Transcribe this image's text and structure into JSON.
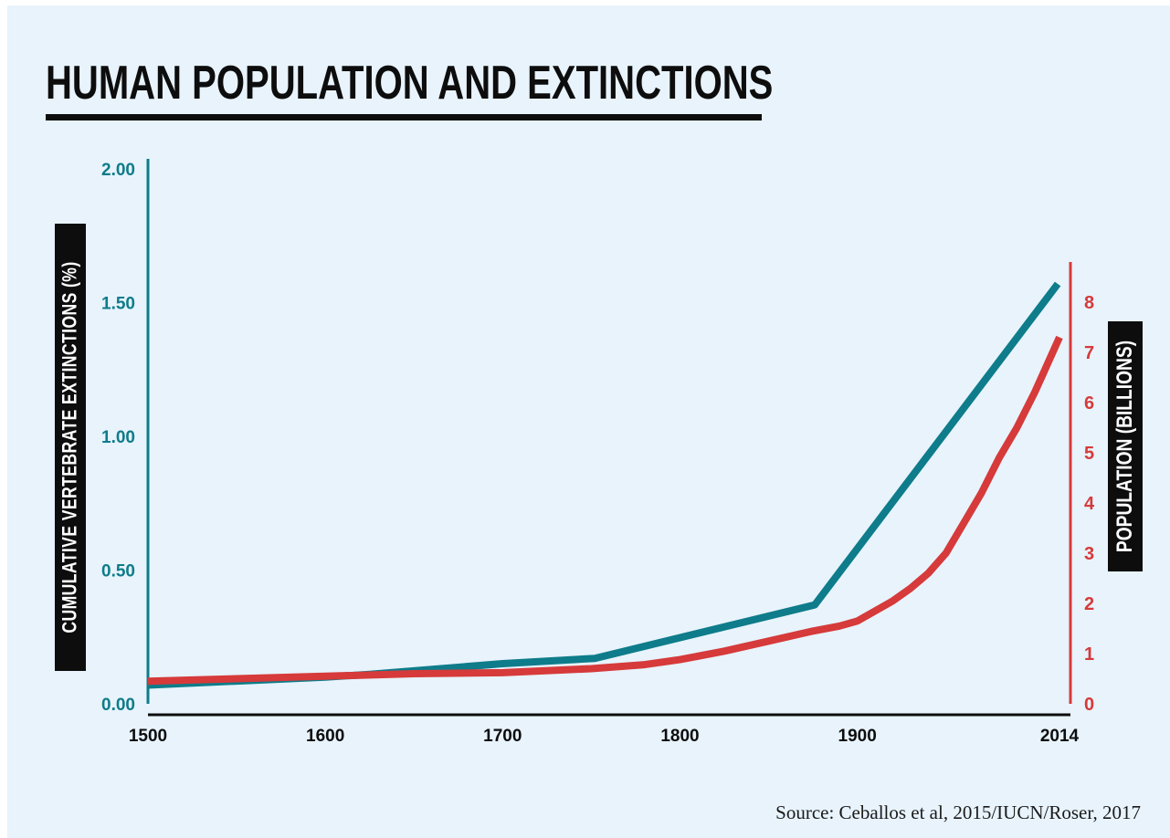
{
  "chart_data": {
    "type": "line",
    "title": "HUMAN POPULATION AND EXTINCTIONS",
    "ylabel": "CUMULATIVE VERTEBRATE EXTINCTIONS (%)",
    "y2label": "POPULATION (BILLIONS)",
    "source": "Source: Ceballos et al, 2015/IUCN/Roser, 2017",
    "x_ticks": [
      "1500",
      "1600",
      "1700",
      "1800",
      "1900",
      "2014"
    ],
    "x_tick_values": [
      1500,
      1600,
      1700,
      1800,
      1900,
      2014
    ],
    "xlim": [
      1500,
      2014
    ],
    "y_ticks": [
      "0.00",
      "0.50",
      "1.00",
      "1.50",
      "2.00"
    ],
    "y_tick_values": [
      0,
      0.5,
      1,
      1.5,
      2
    ],
    "ylim": [
      0,
      2
    ],
    "y2_ticks": [
      "0",
      "1",
      "2",
      "3",
      "4",
      "5",
      "6",
      "7",
      "8"
    ],
    "y2_tick_values": [
      0,
      1,
      2,
      3,
      4,
      5,
      6,
      7,
      8
    ],
    "y2lim": [
      0,
      8.8
    ],
    "series": [
      {
        "axis": "left",
        "color": "#0e7c8a",
        "x": [
          1500,
          1600,
          1625,
          1700,
          1752,
          1876,
          2013
        ],
        "y": [
          0.07,
          0.1,
          0.11,
          0.15,
          0.17,
          0.37,
          1.57
        ]
      },
      {
        "axis": "right",
        "color": "#d63a3a",
        "x": [
          1500,
          1550,
          1600,
          1650,
          1700,
          1750,
          1780,
          1800,
          1825,
          1850,
          1875,
          1890,
          1900,
          1910,
          1920,
          1930,
          1940,
          1950,
          1960,
          1970,
          1980,
          1990,
          2000,
          2014
        ],
        "y": [
          0.45,
          0.5,
          0.55,
          0.6,
          0.62,
          0.7,
          0.78,
          0.88,
          1.05,
          1.25,
          1.45,
          1.55,
          1.65,
          1.85,
          2.05,
          2.3,
          2.6,
          3.0,
          3.6,
          4.2,
          4.9,
          5.5,
          6.2,
          7.3
        ]
      }
    ],
    "colors": {
      "teal": "#0e7c8a",
      "red": "#d63a3a",
      "background": "#e8f3fc",
      "ink": "#0d0d0d"
    }
  }
}
